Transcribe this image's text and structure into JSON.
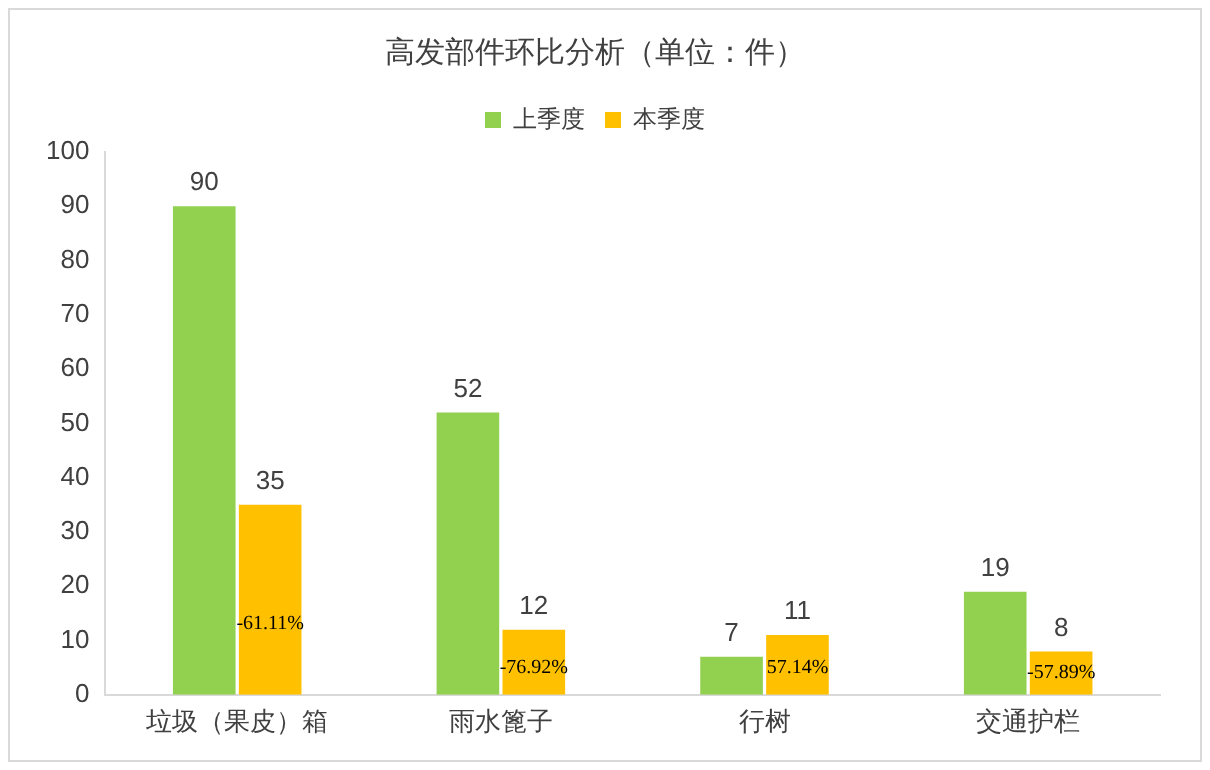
{
  "chart_data": {
    "type": "bar",
    "title": "高发部件环比分析（单位：件）",
    "categories": [
      "垃圾（果皮）箱",
      "雨水篦子",
      "行树",
      "交通护栏"
    ],
    "series": [
      {
        "name": "上季度",
        "color": "#92d050",
        "values": [
          90,
          52,
          7,
          19
        ]
      },
      {
        "name": "本季度",
        "color": "#ffc000",
        "values": [
          35,
          12,
          11,
          8
        ]
      }
    ],
    "ylim": [
      0,
      100
    ],
    "yticks": [
      0,
      10,
      20,
      30,
      40,
      50,
      60,
      70,
      80,
      90,
      100
    ],
    "grid": false,
    "legend": "top",
    "data_labels": true,
    "annotations": [
      {
        "text": "-61.11%",
        "x": "垃圾（果皮）箱",
        "y": 13
      },
      {
        "text": "-76.92%",
        "x": "雨水篦子",
        "y": 5
      },
      {
        "text": "57.14%",
        "x": "行树",
        "y": 5
      },
      {
        "text": "-57.89%",
        "x": "交通护栏",
        "y": 4
      }
    ]
  }
}
